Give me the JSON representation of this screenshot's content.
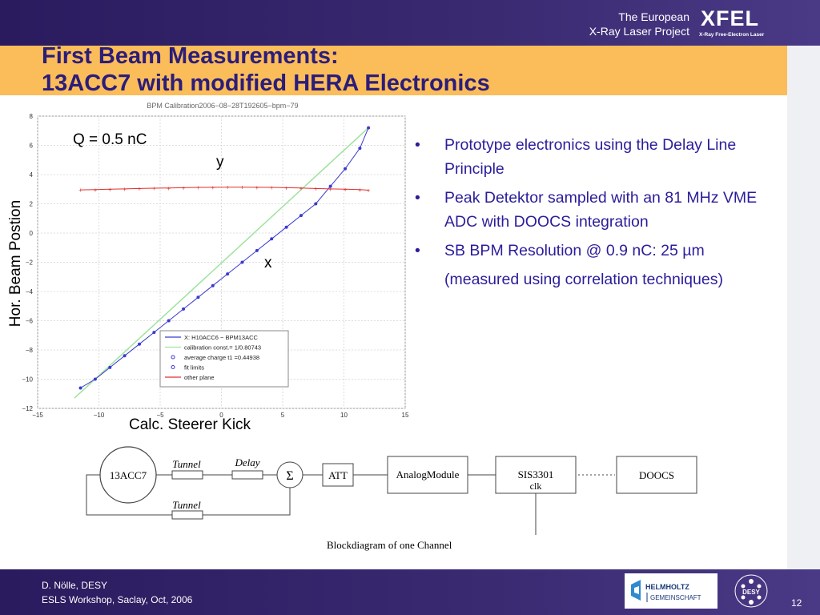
{
  "header": {
    "org_line1": "The European",
    "org_line2": "X-Ray Laser Project",
    "logo_text": "XFEL",
    "logo_subtitle": "X-Ray Free-Electron Laser",
    "title_line1": "First Beam Measurements:",
    "title_line2": "13ACC7 with modified HERA Electronics"
  },
  "figure": {
    "annotation_charge": "Q = 0.5 nC",
    "annotation_y": "y",
    "annotation_x": "x",
    "ylabel_overlay": "Hor. Beam Postion",
    "xlabel_overlay": "Calc. Steerer Kick"
  },
  "chart_data": {
    "type": "line",
    "title": "BPM Calibration2006−08−28T192605−bpm−79",
    "xlim": [
      -15,
      15
    ],
    "ylim": [
      -12,
      8
    ],
    "xticks": [
      -15,
      -10,
      -5,
      0,
      5,
      10,
      15
    ],
    "yticks": [
      -12,
      -10,
      -8,
      -6,
      -4,
      -2,
      0,
      2,
      4,
      6,
      8
    ],
    "grid": true,
    "legend_position": "lower-right",
    "legend": [
      "X: H10ACC6 − BPM13ACC",
      "calibration const.= 1/0.80743",
      "average charge t1 =0.44938",
      "fit limits",
      "other plane"
    ],
    "series": [
      {
        "name": "X: H10ACC6 − BPM13ACC",
        "color": "#3a3ad0",
        "x": [
          -11.5,
          -10.3,
          -9.1,
          -7.9,
          -6.7,
          -5.5,
          -4.3,
          -3.1,
          -1.9,
          -0.7,
          0.5,
          1.7,
          2.9,
          4.1,
          5.3,
          6.5,
          7.7,
          8.9,
          10.1,
          11.3,
          12.0
        ],
        "y": [
          -10.6,
          -10.0,
          -9.2,
          -8.4,
          -7.6,
          -6.8,
          -6.0,
          -5.2,
          -4.4,
          -3.6,
          -2.8,
          -2.0,
          -1.2,
          -0.4,
          0.4,
          1.2,
          2.0,
          3.2,
          4.4,
          5.8,
          7.2
        ]
      },
      {
        "name": "other plane",
        "color": "#e03030",
        "x": [
          -11.5,
          -10.3,
          -9.1,
          -7.9,
          -6.7,
          -5.5,
          -4.3,
          -3.1,
          -1.9,
          -0.7,
          0.5,
          1.7,
          2.9,
          4.1,
          5.3,
          6.5,
          7.7,
          8.9,
          10.1,
          11.3,
          12.0
        ],
        "y": [
          2.95,
          2.97,
          3.0,
          3.02,
          3.05,
          3.07,
          3.08,
          3.1,
          3.12,
          3.13,
          3.14,
          3.14,
          3.13,
          3.12,
          3.1,
          3.08,
          3.05,
          3.02,
          3.0,
          2.97,
          2.93
        ]
      }
    ]
  },
  "bullets": [
    {
      "text": "Prototype electronics using the Delay Line Principle",
      "marker": "•"
    },
    {
      "text": "Peak Detektor sampled with an 81 MHz VME ADC with DOOCS integration",
      "marker": "•"
    },
    {
      "text": "SB BPM Resolution @ 0.9 nC: 25 µm",
      "marker": "•"
    },
    {
      "text": "(measured using correlation techniques)",
      "marker": ""
    }
  ],
  "blockdiagram": {
    "caption": "Blockdiagram of one Channel",
    "source": "13ACC7",
    "tunnel1": "Tunnel",
    "delay": "Delay",
    "tunnel2": "Tunnel",
    "sum_symbol": "Σ",
    "att": "ATT",
    "analog": "AnalogModule",
    "sis_line1": "SIS3301",
    "sis_line2": "clk",
    "doocs": "DOOCS"
  },
  "footer": {
    "author": "D. Nölle, DESY",
    "event": "ESLS Workshop, Saclay, Oct, 2006",
    "page": "12",
    "helmholtz_line1": "HELMHOLTZ",
    "helmholtz_line2": "GEMEINSCHAFT",
    "desy_label": "DESY"
  },
  "colors": {
    "header_bg": "#2a1a5e",
    "title_band": "#fbbc5a",
    "title_text": "#2b1d7a",
    "bullet_text": "#2b1d9a"
  }
}
